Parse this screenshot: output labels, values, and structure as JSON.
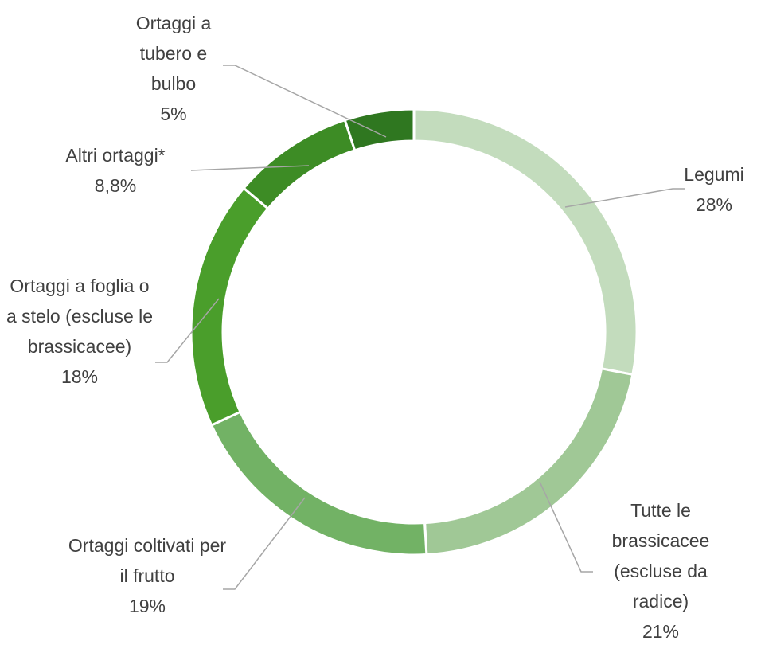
{
  "chart_data": {
    "type": "donut",
    "categories": [
      "Legumi",
      "Tutte le brassicacee (escluse da radice)",
      "Ortaggi coltivati per il frutto",
      "Ortaggi a foglia o a stelo (escluse le brassicacee)",
      "Altri ortaggi*",
      "Ortaggi a tubero e bulbo"
    ],
    "values": [
      28,
      21,
      19,
      18,
      8.8,
      5
    ],
    "value_labels": [
      "28%",
      "21%",
      "19%",
      "18%",
      "8,8%",
      "5%"
    ],
    "colors": [
      "#c3dcbd",
      "#a0c896",
      "#72b265",
      "#4a9e2b",
      "#3d8c25",
      "#2f7720"
    ]
  }
}
